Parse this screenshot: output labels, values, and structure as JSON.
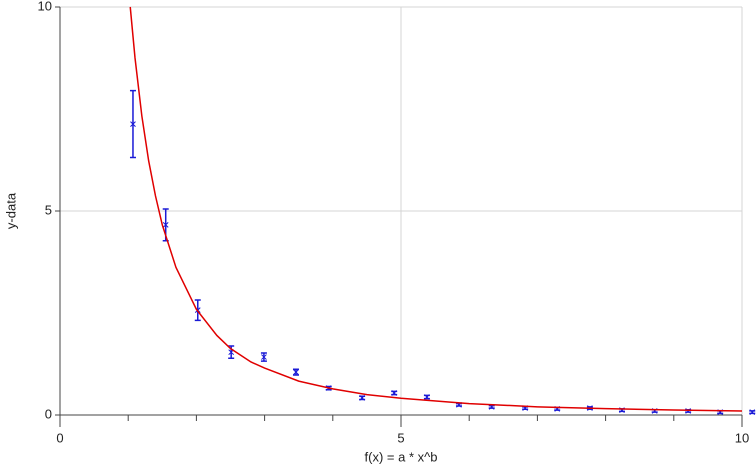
{
  "chart_data": {
    "type": "scatter",
    "xlabel": "f(x) = a * x^b",
    "ylabel": "y-data",
    "xlim": [
      0,
      10
    ],
    "ylim": [
      0,
      10
    ],
    "xticks": [
      0,
      5,
      10
    ],
    "yticks": [
      0,
      5,
      10
    ],
    "xminorticks": [
      1,
      2,
      3,
      4,
      6,
      7,
      8,
      9
    ],
    "grid": true,
    "series": [
      {
        "type": "errorbar",
        "color": "#1a1ad6",
        "x": [
          1.07,
          1.55,
          2.02,
          2.51,
          2.99,
          3.46,
          3.94,
          4.43,
          4.9,
          5.38,
          5.85,
          6.33,
          6.82,
          7.29,
          7.77,
          8.24,
          8.72,
          9.21,
          9.68,
          10.15
        ],
        "values": [
          7.13,
          4.66,
          2.57,
          1.54,
          1.42,
          1.05,
          0.66,
          0.42,
          0.54,
          0.44,
          0.25,
          0.2,
          0.17,
          0.15,
          0.17,
          0.12,
          0.1,
          0.1,
          0.07,
          0.07
        ],
        "errors": [
          0.82,
          0.39,
          0.25,
          0.15,
          0.1,
          0.07,
          0.04,
          0.04,
          0.04,
          0.04,
          0.03,
          0.03,
          0.03,
          0.03,
          0.03,
          0.03,
          0.03,
          0.03,
          0.03,
          0.03
        ]
      },
      {
        "type": "line",
        "color": "#e00000",
        "x": [
          1.03,
          1.1,
          1.2,
          1.3,
          1.4,
          1.5,
          1.7,
          2,
          2.3,
          2.5,
          2.8,
          3,
          3.5,
          4,
          4.5,
          5,
          6,
          7,
          8,
          9,
          10
        ],
        "values": [
          10.0,
          8.75,
          7.33,
          6.23,
          5.37,
          4.66,
          3.62,
          2.59,
          1.95,
          1.63,
          1.3,
          1.15,
          0.83,
          0.64,
          0.5,
          0.41,
          0.28,
          0.2,
          0.155,
          0.122,
          0.099
        ]
      }
    ]
  }
}
